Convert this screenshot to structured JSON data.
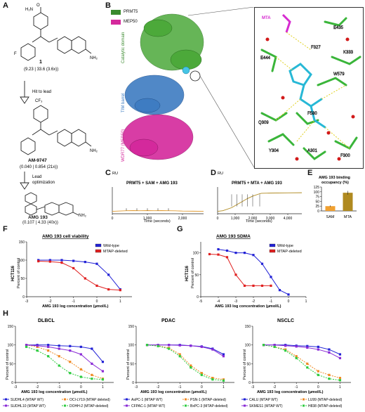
{
  "panel_labels": {
    "a": "A",
    "b": "B",
    "c": "C",
    "d": "D",
    "e": "E",
    "f": "F",
    "g": "G",
    "h": "H"
  },
  "panel_a": {
    "cmpd1_label": "1",
    "cmpd1_values": "(9.23 | 33.6 (3.6x))",
    "arrow1_label": "Hit to lead",
    "cmpd2_label": "AM-9747",
    "cmpd2_values": "(0.040 | 0.854 (21x))",
    "arrow2_label_1": "Lead",
    "arrow2_label_2": "optimization",
    "cmpd3_label": "AMG 193",
    "cmpd3_values": "(0.107 | 4.33 (40x))",
    "atoms": {
      "o": "O",
      "h2n": "H₂N",
      "n": "N",
      "f": "F",
      "nh2": "NH₂",
      "cf3": "CF₃"
    }
  },
  "panel_b": {
    "legend": [
      {
        "label": "PRMT5",
        "color": "#3a8a2e"
      },
      {
        "label": "MEP50",
        "color": "#d4299c"
      }
    ],
    "domain_labels": {
      "catalytic": "Catalytic domain",
      "tim": "TIM barrel",
      "wdr": "WDR77 (MEP50)"
    },
    "residues": [
      "MTA",
      "E435",
      "F327",
      "K333",
      "E444",
      "W579",
      "Q309",
      "F580",
      "Y304",
      "A301",
      "F300"
    ]
  },
  "panel_c": {
    "title": "PRMT5 + SAM + AMG 193",
    "ylabel": "RU",
    "xlabel": "Time (seconds)",
    "xticks": [
      "0",
      "1,000",
      "2,000"
    ]
  },
  "panel_d": {
    "title": "PRMT5 + MTA + AMG 193",
    "ylabel": "RU",
    "xlabel": "Time (seconds)",
    "xticks": [
      "0",
      "1,000",
      "2,000",
      "3,000",
      "4,000"
    ]
  },
  "panel_e": {
    "title_1": "AMG 193 binding",
    "title_2": "occupancy (%)"
  },
  "panel_f": {
    "title": "AMG 193 cell viability",
    "ylabel_1": "HCT116",
    "ylabel_2": "Percent of control",
    "xlabel": "AMG 193 log concentration (μmol/L)"
  },
  "panel_g": {
    "title": "AMG 193 SDMA",
    "ylabel_1": "HCT116",
    "ylabel_2": "Percent of control",
    "xlabel": "AMG 193 log concentration (μmol/L)"
  },
  "panel_h": {
    "xlabel": "AMG 193 log concentration (μmol/L)",
    "ylabel": "Percent of control",
    "subtitles": [
      "DLBCL",
      "PDAC",
      "NSCLC"
    ],
    "legends": [
      [
        {
          "label": "SUDHL4 (MTAP WT)",
          "color": "#2222d6",
          "dash": false
        },
        {
          "label": "OCI-LY19 (MTAP deleted)",
          "color": "#f08a24",
          "dash": true
        },
        {
          "label": "SUDHL10 (MTAP WT)",
          "color": "#8a2bd6",
          "dash": false
        },
        {
          "label": "DOHH-2 (MTAP-deleted)",
          "color": "#2ecc40",
          "dash": true
        }
      ],
      [
        {
          "label": "AsPC-1 (MTAP WT)",
          "color": "#2222d6",
          "dash": false
        },
        {
          "label": "PSN-1 (MTAP-deleted)",
          "color": "#f08a24",
          "dash": true
        },
        {
          "label": "CFPAC-1 (MTAP WT)",
          "color": "#8a2bd6",
          "dash": false
        },
        {
          "label": "BxPC-3 (MTAP-deleted)",
          "color": "#2ecc40",
          "dash": true
        }
      ],
      [
        {
          "label": "CALU (MTAP WT)",
          "color": "#2222d6",
          "dash": false
        },
        {
          "label": "LU99 (MTAP-deleted)",
          "color": "#f08a24",
          "dash": true
        },
        {
          "label": "SKMES1 (MTAP WT)",
          "color": "#8a2bd6",
          "dash": false
        },
        {
          "label": "H838 (MTAP-deleted)",
          "color": "#2ecc40",
          "dash": true
        }
      ]
    ]
  },
  "chart_data": [
    {
      "id": "C",
      "type": "line",
      "title": "PRMT5 + SAM + AMG 193",
      "xlabel": "Time (seconds)",
      "ylabel": "RU",
      "xlim": [
        0,
        2600
      ],
      "ylim": [
        -2,
        20
      ],
      "series": [
        {
          "values": [
            [
              0,
              0
            ],
            [
              400,
              0.5
            ],
            [
              600,
              0.6
            ],
            [
              800,
              0.5
            ],
            [
              1000,
              0.6
            ],
            [
              1200,
              0.5
            ],
            [
              1400,
              0.6
            ],
            [
              1600,
              0.5
            ],
            [
              1800,
              0.4
            ],
            [
              2000,
              0.2
            ],
            [
              2300,
              0.1
            ],
            [
              2600,
              0
            ]
          ]
        }
      ]
    },
    {
      "id": "D",
      "type": "line",
      "title": "PRMT5 + MTA + AMG 193",
      "xlabel": "Time (seconds)",
      "ylabel": "RU",
      "xlim": [
        0,
        4800
      ],
      "ylim": [
        -2,
        20
      ],
      "series": [
        {
          "values": [
            [
              0,
              0
            ],
            [
              300,
              0.5
            ],
            [
              800,
              3
            ],
            [
              1100,
              5.5
            ],
            [
              1400,
              8
            ],
            [
              1700,
              10.5
            ],
            [
              2000,
              12.5
            ],
            [
              2400,
              14.5
            ],
            [
              2500,
              14.8
            ],
            [
              3000,
              15
            ],
            [
              4000,
              15.2
            ],
            [
              4800,
              15.3
            ]
          ]
        }
      ]
    },
    {
      "id": "E",
      "type": "bar",
      "title": "AMG 193 binding occupancy (%)",
      "categories": [
        "SAM",
        "MTA"
      ],
      "values": [
        25,
        95
      ],
      "errors": [
        4,
        10
      ],
      "ylim": [
        0,
        125
      ],
      "yticks": [
        0,
        25,
        50,
        75,
        100,
        125
      ]
    },
    {
      "id": "F",
      "type": "line",
      "title": "AMG 193 cell viability",
      "xlabel": "AMG 193 log concentration (μmol/L)",
      "ylabel": "Percent of control",
      "xlim": [
        -3,
        1.5
      ],
      "ylim": [
        0,
        150
      ],
      "yticks": [
        0,
        50,
        100,
        150
      ],
      "xticks": [
        -3,
        -2,
        -1,
        0,
        1
      ],
      "series": [
        {
          "name": "Wild-type",
          "color": "#2222d6",
          "x": [
            -2.5,
            -2,
            -1.5,
            -1,
            -0.5,
            0,
            0.5,
            1
          ],
          "values": [
            100,
            100,
            100,
            98,
            95,
            90,
            60,
            20
          ]
        },
        {
          "name": "MTAP-deleted",
          "color": "#e02020",
          "x": [
            -2.5,
            -2,
            -1.5,
            -1,
            -0.5,
            0,
            0.5,
            1
          ],
          "values": [
            97,
            96,
            93,
            78,
            50,
            30,
            20,
            18
          ]
        }
      ]
    },
    {
      "id": "G",
      "type": "line",
      "title": "AMG 193 SDMA",
      "xlabel": "AMG 193 log concentration (μmol/L)",
      "ylabel": "Percent of control",
      "xlim": [
        -5,
        1
      ],
      "ylim": [
        0,
        125
      ],
      "yticks": [
        0,
        50,
        100
      ],
      "xticks": [
        -5,
        -4,
        -3,
        -2,
        -1,
        0,
        1
      ],
      "series": [
        {
          "name": "Wild-type",
          "color": "#2222d6",
          "x": [
            -4,
            -3.5,
            -3,
            -2.5,
            -2,
            -1.5,
            -1,
            -0.5,
            0
          ],
          "values": [
            108,
            105,
            100,
            100,
            95,
            75,
            45,
            15,
            5
          ]
        },
        {
          "name": "MTAP-deleted",
          "color": "#e02020",
          "x": [
            -4.5,
            -4,
            -3.5,
            -3,
            -2.5,
            -2,
            -1.5,
            -1
          ],
          "values": [
            97,
            96,
            90,
            50,
            25,
            25,
            25,
            25
          ]
        }
      ]
    },
    {
      "id": "H-DLBCL",
      "type": "line",
      "title": "DLBCL",
      "xlim": [
        -3,
        1.5
      ],
      "ylim": [
        0,
        150
      ],
      "series": [
        {
          "name": "SUDHL4 (MTAP WT)",
          "x": [
            -2.5,
            -2,
            -1.5,
            -1,
            -0.5,
            0,
            0.5,
            1
          ],
          "values": [
            100,
            100,
            100,
            98,
            97,
            95,
            90,
            55
          ]
        },
        {
          "name": "OCI-LY19 (MTAP deleted)",
          "x": [
            -2.5,
            -2,
            -1.5,
            -1,
            -0.5,
            0,
            0.5,
            1
          ],
          "values": [
            100,
            95,
            85,
            70,
            55,
            35,
            20,
            10
          ]
        },
        {
          "name": "SUDHL10 (MTAP WT)",
          "x": [
            -2.5,
            -2,
            -1.5,
            -1,
            -0.5,
            0,
            0.5,
            1
          ],
          "values": [
            100,
            98,
            95,
            90,
            85,
            75,
            50,
            30
          ]
        },
        {
          "name": "DOHH-2 (MTAP-deleted)",
          "x": [
            -2.5,
            -2,
            -1.5,
            -1,
            -0.5,
            0,
            0.5,
            1
          ],
          "values": [
            95,
            85,
            70,
            45,
            25,
            15,
            10,
            8
          ]
        }
      ]
    },
    {
      "id": "H-PDAC",
      "type": "line",
      "title": "PDAC",
      "xlim": [
        -3,
        1.5
      ],
      "ylim": [
        0,
        150
      ],
      "series": [
        {
          "name": "AsPC-1 (MTAP WT)",
          "x": [
            -2.5,
            -2,
            -1.5,
            -1,
            -0.5,
            0,
            0.5,
            1
          ],
          "values": [
            100,
            100,
            100,
            100,
            98,
            96,
            90,
            75
          ]
        },
        {
          "name": "PSN-1 (MTAP-deleted)",
          "x": [
            -2.5,
            -2,
            -1.5,
            -1,
            -0.5,
            0,
            0.5,
            1
          ],
          "values": [
            100,
            98,
            92,
            75,
            45,
            25,
            12,
            8
          ]
        },
        {
          "name": "CFPAC-1 (MTAP WT)",
          "x": [
            -2.5,
            -2,
            -1.5,
            -1,
            -0.5,
            0,
            0.5,
            1
          ],
          "values": [
            100,
            100,
            100,
            99,
            98,
            95,
            88,
            70
          ]
        },
        {
          "name": "BxPC-3 (MTAP-deleted)",
          "x": [
            -2.5,
            -2,
            -1.5,
            -1,
            -0.5,
            0,
            0.5,
            1
          ],
          "values": [
            100,
            97,
            90,
            70,
            40,
            20,
            8,
            5
          ]
        }
      ]
    },
    {
      "id": "H-NSCLC",
      "type": "line",
      "title": "NSCLC",
      "xlim": [
        -3,
        1.5
      ],
      "ylim": [
        0,
        150
      ],
      "series": [
        {
          "name": "CALU (MTAP WT)",
          "x": [
            -2.5,
            -2,
            -1.5,
            -1,
            -0.5,
            0,
            0.5,
            1
          ],
          "values": [
            100,
            100,
            100,
            98,
            97,
            95,
            88,
            75
          ]
        },
        {
          "name": "LU99 (MTAP-deleted)",
          "x": [
            -2.5,
            -2,
            -1.5,
            -1,
            -0.5,
            0,
            0.5,
            1
          ],
          "values": [
            100,
            95,
            88,
            70,
            50,
            30,
            20,
            12
          ]
        },
        {
          "name": "SKMES1 (MTAP WT)",
          "x": [
            -2.5,
            -2,
            -1.5,
            -1,
            -0.5,
            0,
            0.5,
            1
          ],
          "values": [
            100,
            100,
            98,
            96,
            93,
            88,
            80,
            65
          ]
        },
        {
          "name": "H838 (MTAP-deleted)",
          "x": [
            -2.5,
            -2,
            -1.5,
            -1,
            -0.5,
            0,
            0.5,
            1
          ],
          "values": [
            100,
            95,
            85,
            65,
            40,
            20,
            10,
            6
          ]
        }
      ]
    }
  ]
}
